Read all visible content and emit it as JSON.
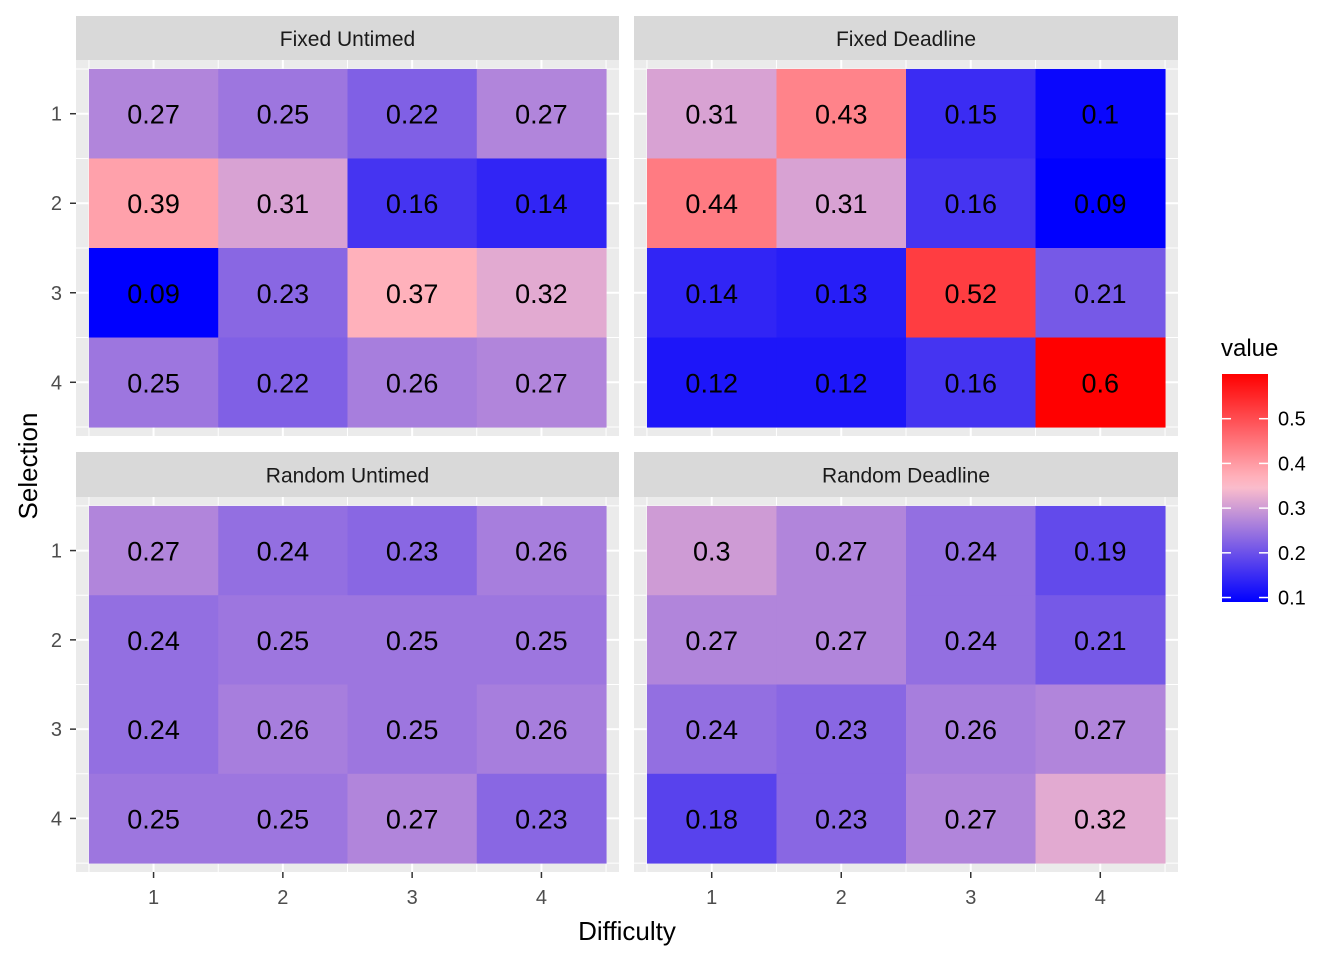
{
  "chart_data": {
    "type": "heatmap",
    "xlabel": "Difficulty",
    "ylabel": "Selection",
    "x_categories": [
      "1",
      "2",
      "3",
      "4"
    ],
    "y_categories": [
      "1",
      "2",
      "3",
      "4"
    ],
    "legend": {
      "title": "value",
      "ticks": [
        "0.1",
        "0.2",
        "0.3",
        "0.4",
        "0.5"
      ],
      "tick_values": [
        0.1,
        0.2,
        0.3,
        0.4,
        0.5
      ],
      "range": [
        0.09,
        0.6
      ],
      "placement": "right"
    },
    "color_scale": {
      "low": "#0000ff",
      "mid": "#ffc0cb",
      "high": "#ff0000",
      "midpoint": 0.35
    },
    "grid": true,
    "panels": [
      {
        "title": "Fixed Untimed",
        "rows": [
          {
            "selection": "1",
            "values": [
              0.27,
              0.25,
              0.22,
              0.27
            ],
            "labels": [
              "0.27",
              "0.25",
              "0.22",
              "0.27"
            ]
          },
          {
            "selection": "2",
            "values": [
              0.39,
              0.31,
              0.16,
              0.14
            ],
            "labels": [
              "0.39",
              "0.31",
              "0.16",
              "0.14"
            ]
          },
          {
            "selection": "3",
            "values": [
              0.09,
              0.23,
              0.37,
              0.32
            ],
            "labels": [
              "0.09",
              "0.23",
              "0.37",
              "0.32"
            ]
          },
          {
            "selection": "4",
            "values": [
              0.25,
              0.22,
              0.26,
              0.27
            ],
            "labels": [
              "0.25",
              "0.22",
              "0.26",
              "0.27"
            ]
          }
        ]
      },
      {
        "title": "Fixed Deadline",
        "rows": [
          {
            "selection": "1",
            "values": [
              0.31,
              0.43,
              0.15,
              0.1
            ],
            "labels": [
              "0.31",
              "0.43",
              "0.15",
              "0.1"
            ]
          },
          {
            "selection": "2",
            "values": [
              0.44,
              0.31,
              0.16,
              0.09
            ],
            "labels": [
              "0.44",
              "0.31",
              "0.16",
              "0.09"
            ]
          },
          {
            "selection": "3",
            "values": [
              0.14,
              0.13,
              0.52,
              0.21
            ],
            "labels": [
              "0.14",
              "0.13",
              "0.52",
              "0.21"
            ]
          },
          {
            "selection": "4",
            "values": [
              0.12,
              0.12,
              0.16,
              0.6
            ],
            "labels": [
              "0.12",
              "0.12",
              "0.16",
              "0.6"
            ]
          }
        ]
      },
      {
        "title": "Random Untimed",
        "rows": [
          {
            "selection": "1",
            "values": [
              0.27,
              0.24,
              0.23,
              0.26
            ],
            "labels": [
              "0.27",
              "0.24",
              "0.23",
              "0.26"
            ]
          },
          {
            "selection": "2",
            "values": [
              0.24,
              0.25,
              0.25,
              0.25
            ],
            "labels": [
              "0.24",
              "0.25",
              "0.25",
              "0.25"
            ]
          },
          {
            "selection": "3",
            "values": [
              0.24,
              0.26,
              0.25,
              0.26
            ],
            "labels": [
              "0.24",
              "0.26",
              "0.25",
              "0.26"
            ]
          },
          {
            "selection": "4",
            "values": [
              0.25,
              0.25,
              0.27,
              0.23
            ],
            "labels": [
              "0.25",
              "0.25",
              "0.27",
              "0.23"
            ]
          }
        ]
      },
      {
        "title": "Random Deadline",
        "rows": [
          {
            "selection": "1",
            "values": [
              0.3,
              0.27,
              0.24,
              0.19
            ],
            "labels": [
              "0.3",
              "0.27",
              "0.24",
              "0.19"
            ]
          },
          {
            "selection": "2",
            "values": [
              0.27,
              0.27,
              0.24,
              0.21
            ],
            "labels": [
              "0.27",
              "0.27",
              "0.24",
              "0.21"
            ]
          },
          {
            "selection": "3",
            "values": [
              0.24,
              0.23,
              0.26,
              0.27
            ],
            "labels": [
              "0.24",
              "0.23",
              "0.26",
              "0.27"
            ]
          },
          {
            "selection": "4",
            "values": [
              0.18,
              0.23,
              0.27,
              0.32
            ],
            "labels": [
              "0.18",
              "0.23",
              "0.27",
              "0.32"
            ]
          }
        ]
      }
    ]
  }
}
